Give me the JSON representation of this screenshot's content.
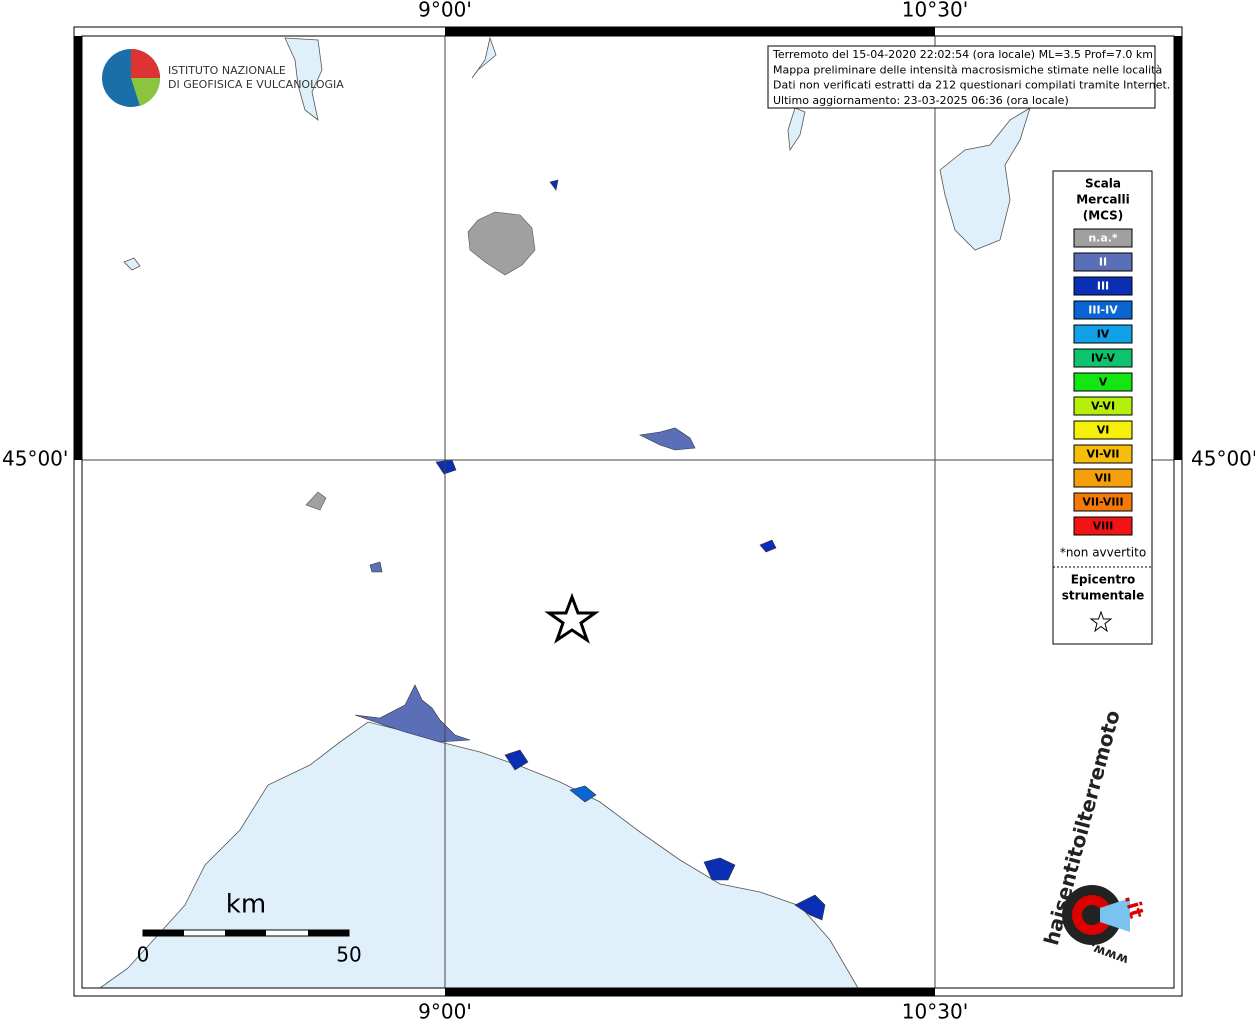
{
  "map": {
    "lon_labels": [
      "9°00'",
      "10°30'"
    ],
    "lat_label": "45°00'",
    "info": [
      "Terremoto del 15-04-2020 22:02:54 (ora locale) ML=3.5 Prof=7.0 km",
      "Mappa preliminare delle intensità macrosismiche stimate nelle località",
      "Dati non verificati estratti da 212 questionari compilati tramite Internet.",
      "Ultimo aggiornamento: 23-03-2025 06:36 (ora locale)"
    ],
    "logo": [
      "ISTITUTO NAZIONALE",
      "DI GEOFISICA E VULCANOLOGIA"
    ],
    "legend": {
      "title": [
        "Scala",
        "Mercalli",
        "(MCS)"
      ],
      "items": [
        {
          "label": "n.a.*",
          "color": "#a0a0a0"
        },
        {
          "label": "II",
          "color": "#5a6fb8"
        },
        {
          "label": "III",
          "color": "#0a2fb4"
        },
        {
          "label": "III-IV",
          "color": "#0a64d2"
        },
        {
          "label": "IV",
          "color": "#12a0e6"
        },
        {
          "label": "IV-V",
          "color": "#0fc36e"
        },
        {
          "label": "V",
          "color": "#14e614"
        },
        {
          "label": "V-VI",
          "color": "#b4f00a"
        },
        {
          "label": "VI",
          "color": "#f5f00a"
        },
        {
          "label": "VI-VII",
          "color": "#f5be0a"
        },
        {
          "label": "VII",
          "color": "#f5a00a"
        },
        {
          "label": "VII-VIII",
          "color": "#f5780a"
        },
        {
          "label": "VIII",
          "color": "#f01414"
        }
      ],
      "note": "*non avvertito",
      "epicenter": [
        "Epicentro",
        "strumentale"
      ]
    },
    "scale_bar": {
      "unit": "km",
      "ticks": [
        0,
        50
      ]
    },
    "site_logo": [
      "haisentitoilterremoto",
      ".it",
      "www."
    ]
  }
}
